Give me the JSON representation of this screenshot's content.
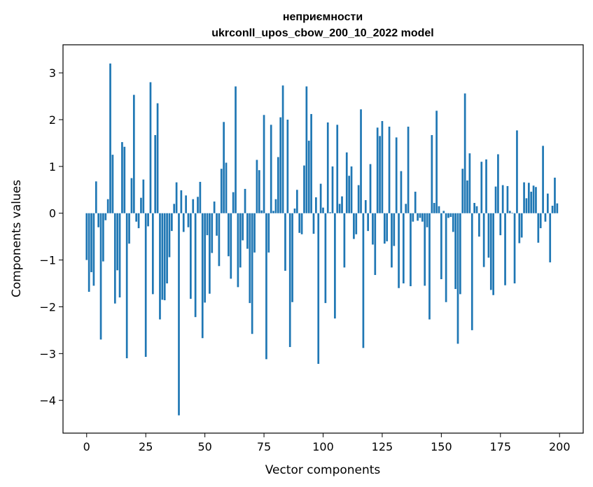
{
  "chart_data": {
    "type": "bar",
    "title": "неприємности",
    "subtitle": "ukrconll_upos_cbow_200_10_2022 model",
    "xlabel": "Vector components",
    "ylabel": "Components values",
    "xlim": [
      -10,
      210
    ],
    "ylim": [
      -4.7,
      3.6
    ],
    "xticks": [
      0,
      25,
      50,
      75,
      100,
      125,
      150,
      175,
      200
    ],
    "yticks": [
      -4,
      -3,
      -2,
      -1,
      0,
      1,
      2,
      3
    ],
    "ytick_labels": [
      "−4",
      "−3",
      "−2",
      "−1",
      "0",
      "1",
      "2",
      "3"
    ],
    "grid": false,
    "bar_color": "#1f77b4",
    "series": [
      {
        "values": [
          -1.0,
          -1.68,
          -1.26,
          -1.55,
          0.68,
          -0.3,
          -2.7,
          -1.03,
          -0.15,
          0.3,
          3.2,
          1.25,
          -1.93,
          -1.22,
          -1.8,
          1.52,
          1.42,
          -3.1,
          -0.65,
          0.75,
          2.53,
          -0.18,
          -0.32,
          0.33,
          0.72,
          -3.07,
          -0.28,
          2.8,
          -1.73,
          1.67,
          2.35,
          -2.27,
          -1.85,
          -1.86,
          -1.5,
          -0.94,
          -0.38,
          0.2,
          0.66,
          -4.32,
          0.49,
          -0.4,
          0.38,
          -0.3,
          -1.83,
          0.3,
          -2.22,
          0.35,
          0.67,
          -2.67,
          -1.91,
          -0.47,
          -1.72,
          -0.85,
          0.25,
          -0.48,
          -1.13,
          0.95,
          1.95,
          1.08,
          -0.92,
          -1.4,
          0.45,
          2.71,
          -1.58,
          -1.16,
          -0.58,
          0.52,
          -0.76,
          -1.92,
          -2.58,
          -0.84,
          1.14,
          0.92,
          0.06,
          2.1,
          -3.12,
          -0.84,
          1.89,
          0.05,
          0.3,
          1.2,
          2.05,
          2.73,
          -1.23,
          2.0,
          -2.86,
          -1.9,
          0.1,
          0.5,
          -0.42,
          -0.45,
          1.02,
          2.71,
          1.55,
          2.12,
          -0.44,
          0.34,
          -3.22,
          0.63,
          0.12,
          -1.92,
          1.94,
          0.02,
          1.0,
          -2.25,
          1.89,
          0.2,
          0.36,
          -1.16,
          1.3,
          0.8,
          1.0,
          -0.55,
          -0.45,
          0.6,
          2.22,
          -2.88,
          0.28,
          -0.38,
          1.05,
          -0.67,
          -1.32,
          1.83,
          1.65,
          1.97,
          -0.65,
          -0.6,
          1.85,
          -1.16,
          -0.7,
          1.62,
          -1.6,
          0.9,
          -1.5,
          0.2,
          1.85,
          -1.56,
          -0.18,
          0.46,
          -0.16,
          -0.1,
          -0.18,
          -1.55,
          -0.3,
          -2.27,
          1.67,
          0.22,
          2.19,
          0.15,
          -1.41,
          0.05,
          -1.9,
          -0.1,
          -0.08,
          -0.4,
          -1.62,
          -2.79,
          -1.73,
          0.95,
          2.56,
          0.7,
          1.28,
          -2.5,
          0.22,
          0.15,
          -0.5,
          1.1,
          -1.15,
          1.15,
          -0.95,
          -1.64,
          -1.75,
          0.57,
          1.26,
          -0.47,
          0.6,
          -1.54,
          0.58,
          0.05,
          0.01,
          -1.5,
          1.77,
          -0.64,
          -0.52,
          0.66,
          0.32,
          0.65,
          0.46,
          0.59,
          0.56,
          -0.63,
          -0.32,
          1.44,
          -0.18,
          0.42,
          -1.05,
          0.16,
          0.76,
          0.21
        ]
      }
    ]
  }
}
